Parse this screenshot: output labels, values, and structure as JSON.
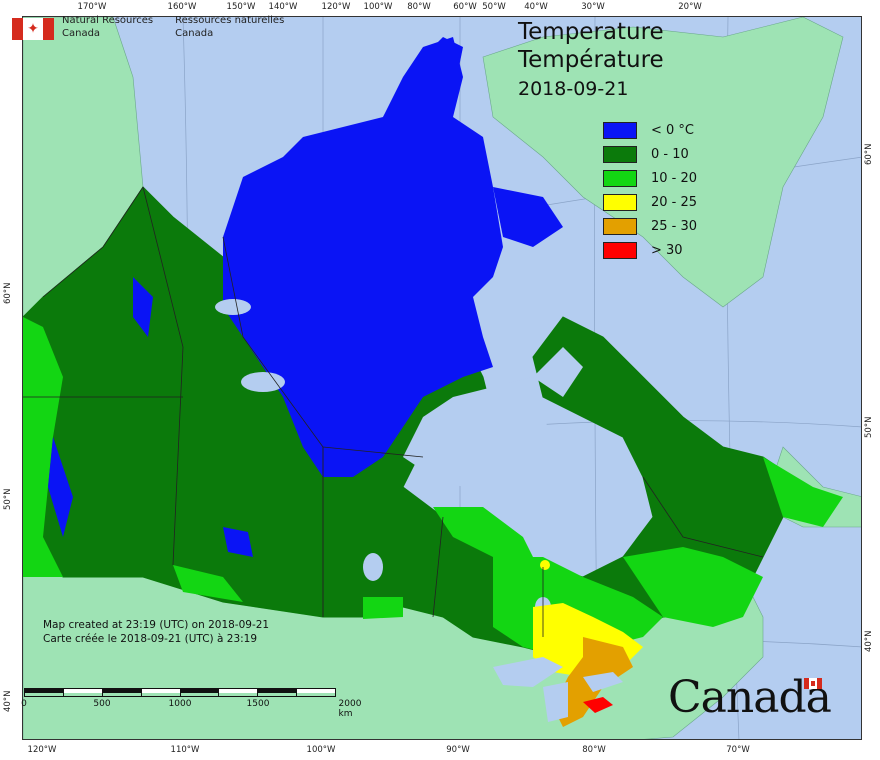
{
  "map": {
    "title_en": "Temperature",
    "title_fr": "Température",
    "date": "2018-09-21",
    "agency": {
      "name_en_line1": "Natural Resources",
      "name_en_line2": "Canada",
      "name_fr_line1": "Ressources naturelles",
      "name_fr_line2": "Canada"
    },
    "legend": [
      {
        "label": "< 0 °C",
        "color": "#0a14f5"
      },
      {
        "label": "0 - 10",
        "color": "#0b7a0b"
      },
      {
        "label": "10 - 20",
        "color": "#13d613"
      },
      {
        "label": "20 - 25",
        "color": "#ffff00"
      },
      {
        "label": "25 - 30",
        "color": "#e3a000"
      },
      {
        "label": "> 30",
        "color": "#ff0000"
      }
    ],
    "credits": {
      "line_en": "Map created at 23:19 (UTC) on 2018-09-21",
      "line_fr": "Carte créée le 2018-09-21 (UTC) à 23:19"
    },
    "scale": {
      "labels": [
        "0",
        "500",
        "1000",
        "1500",
        "2000  km"
      ]
    },
    "wordmark": "Canada",
    "graticule": {
      "top": [
        "170°W",
        "160°W",
        "150°W",
        "140°W",
        "120°W",
        "100°W",
        "80°W",
        "60°W",
        "50°W",
        "40°W",
        "30°W",
        "20°W"
      ],
      "bottom": [
        "120°W",
        "110°W",
        "100°W",
        "90°W",
        "80°W",
        "70°W"
      ],
      "left": [
        "60°N",
        "50°N",
        "40°N"
      ],
      "right": [
        "60°N",
        "50°N",
        "40°N"
      ]
    },
    "colors": {
      "ocean": "#b4cdf0",
      "foreign_land": "#9ee3b4",
      "lake": "#b4cdf0",
      "border": "#222222"
    }
  }
}
